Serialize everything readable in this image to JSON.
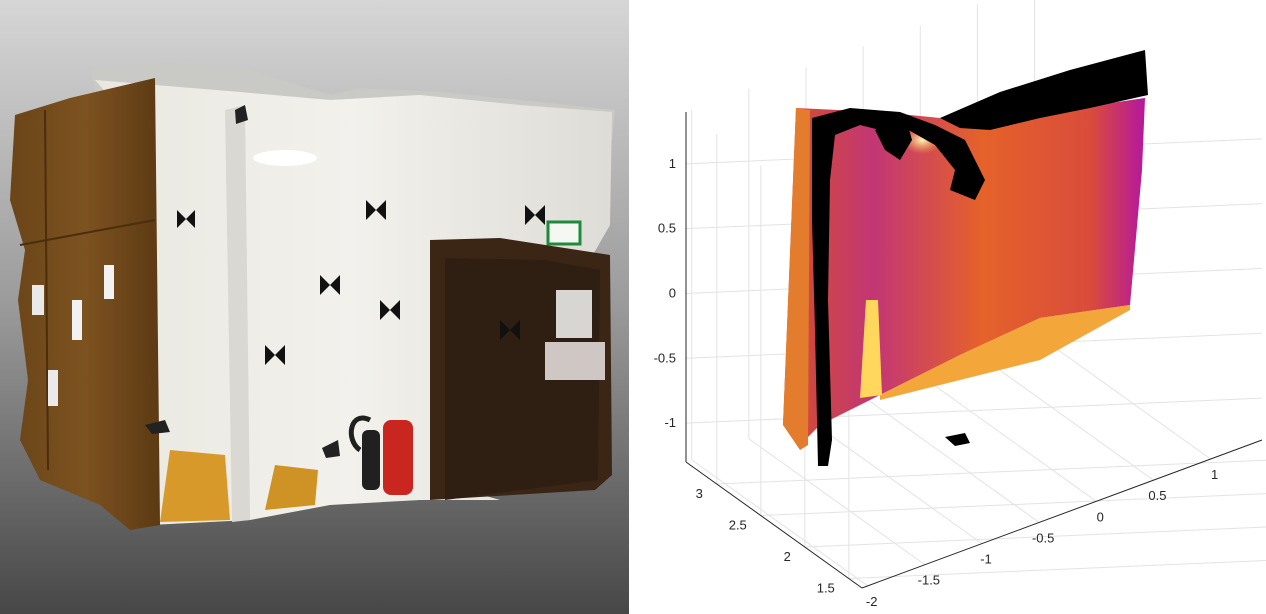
{
  "left_view": {
    "kind": "colored-point-cloud-render"
  },
  "chart_data": {
    "type": "scatter",
    "projection": "3d",
    "colormap": "inferno",
    "grid": true,
    "z_ticks": [
      {
        "value": -1,
        "label": "-1"
      },
      {
        "value": -0.5,
        "label": "-0.5"
      },
      {
        "value": 0,
        "label": "0"
      },
      {
        "value": 0.5,
        "label": "0.5"
      },
      {
        "value": 1,
        "label": "1"
      }
    ],
    "y_ticks": [
      {
        "value": 1.5,
        "label": "1.5"
      },
      {
        "value": 2,
        "label": "2"
      },
      {
        "value": 2.5,
        "label": "2.5"
      },
      {
        "value": 3,
        "label": "3"
      }
    ],
    "x_ticks": [
      {
        "value": -2,
        "label": "-2"
      },
      {
        "value": -1.5,
        "label": "-1.5"
      },
      {
        "value": -1,
        "label": "-1"
      },
      {
        "value": -0.5,
        "label": "-0.5"
      },
      {
        "value": 0,
        "label": "0"
      },
      {
        "value": 0.5,
        "label": "0.5"
      },
      {
        "value": 1,
        "label": "1"
      }
    ],
    "colors": {
      "low": "#b5179e",
      "mid": "#e8542a",
      "high": "#fff3a0",
      "missing": "#000000",
      "grid": "#e3e3e3",
      "axis": "#262626"
    }
  }
}
